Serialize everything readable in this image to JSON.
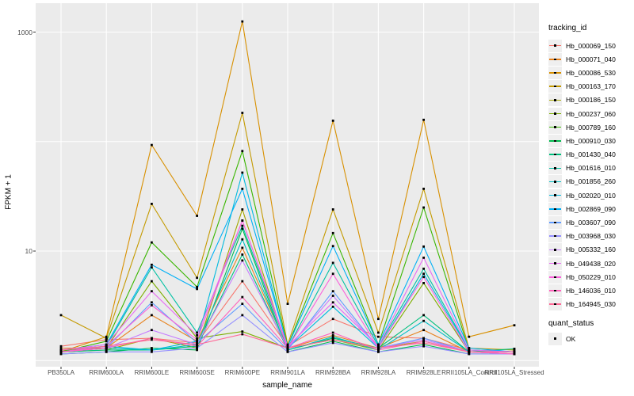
{
  "figure": {
    "x_axis_title": "sample_name",
    "y_axis_title": "FPKM + 1",
    "legend_title": "tracking_id",
    "quant_legend_title": "quant_status",
    "quant_legend_items": [
      {
        "label": "OK"
      }
    ]
  },
  "colors": {
    "panel_bg": "#ebebeb",
    "gridline": "#ffffff",
    "point": "#000000",
    "tick": "#333333",
    "axis_text": "#4d4d4d",
    "legend_key_bg": "#efefef"
  },
  "chart_data": {
    "type": "line",
    "title": "",
    "xlabel": "sample_name",
    "ylabel": "FPKM + 1",
    "yscale": "log10",
    "ylim": [
      0.88,
      1700
    ],
    "y_tick_breaks": [
      1000,
      10
    ],
    "y_gridline_values": [
      1,
      10,
      100,
      1000
    ],
    "grid": true,
    "legend_position": "right",
    "point_shape": "filled-black-square",
    "categories": [
      "PB350LA",
      "RRIM600LA",
      "RRIM600LE",
      "RRIM600SE",
      "RRIM600PE",
      "RRIM901LA",
      "RRIM928BA",
      "RRIM928LA",
      "RRIM928LE",
      "RRII105LA_Control",
      "RRII105LA_Stressed"
    ],
    "series": [
      {
        "name": "Hb_000069_150",
        "color": "#F8766D",
        "values": [
          1.35,
          1.55,
          1.6,
          1.45,
          5.3,
          1.35,
          2.4,
          1.65,
          1.6,
          1.25,
          1.2
        ]
      },
      {
        "name": "Hb_000071_040",
        "color": "#E8821D",
        "values": [
          1.3,
          1.3,
          2.6,
          1.5,
          10.7,
          1.3,
          1.7,
          1.3,
          1.9,
          1.2,
          1.2
        ]
      },
      {
        "name": "Hb_000086_530",
        "color": "#D89000",
        "values": [
          1.2,
          1.65,
          93,
          21,
          1250,
          3.3,
          155,
          2.4,
          158,
          1.65,
          2.1
        ]
      },
      {
        "name": "Hb_000163_170",
        "color": "#C49A00",
        "values": [
          2.6,
          1.6,
          27,
          5.7,
          183,
          1.4,
          24,
          1.8,
          37,
          1.3,
          1.25
        ]
      },
      {
        "name": "Hb_000186_150",
        "color": "#A3A500",
        "values": [
          1.2,
          1.25,
          1.6,
          1.3,
          24,
          1.25,
          1.6,
          1.3,
          1.5,
          1.2,
          1.15
        ]
      },
      {
        "name": "Hb_000237_060",
        "color": "#7CAE00",
        "values": [
          1.25,
          1.3,
          5.3,
          1.6,
          1.84,
          1.3,
          1.55,
          1.25,
          5.1,
          1.2,
          1.2
        ]
      },
      {
        "name": "Hb_000789_160",
        "color": "#39B600",
        "values": [
          1.2,
          1.5,
          12,
          4.7,
          82,
          1.35,
          14.6,
          1.4,
          25,
          1.25,
          1.2
        ]
      },
      {
        "name": "Hb_000910_030",
        "color": "#00BB4E",
        "values": [
          1.15,
          1.2,
          1.3,
          1.25,
          16,
          1.2,
          1.5,
          1.2,
          1.4,
          1.15,
          1.15
        ]
      },
      {
        "name": "Hb_001430_040",
        "color": "#00BF7D",
        "values": [
          1.2,
          1.25,
          1.25,
          1.35,
          9.3,
          1.25,
          1.6,
          1.3,
          2.6,
          1.2,
          1.28
        ]
      },
      {
        "name": "Hb_001616_010",
        "color": "#00C1A3",
        "values": [
          1.25,
          1.35,
          7.1,
          1.8,
          17,
          1.3,
          7.8,
          1.35,
          6.9,
          1.25,
          1.2
        ]
      },
      {
        "name": "Hb_001856_260",
        "color": "#00BFC4",
        "values": [
          1.2,
          1.3,
          1.25,
          1.4,
          12.8,
          1.25,
          1.65,
          1.25,
          2.3,
          1.2,
          1.15
        ]
      },
      {
        "name": "Hb_002020_010",
        "color": "#00BADE",
        "values": [
          1.2,
          1.35,
          1.25,
          1.5,
          52,
          1.3,
          3.1,
          1.3,
          6.2,
          1.25,
          1.2
        ]
      },
      {
        "name": "Hb_002869_090",
        "color": "#00B0F6",
        "values": [
          1.25,
          1.4,
          7.5,
          4.5,
          37,
          1.35,
          11.1,
          1.4,
          11,
          1.3,
          1.2
        ]
      },
      {
        "name": "Hb_003607_090",
        "color": "#619CFF",
        "values": [
          1.2,
          1.3,
          3.4,
          1.45,
          3.3,
          1.25,
          4.3,
          1.3,
          1.6,
          1.2,
          1.15
        ]
      },
      {
        "name": "Hb_003968_030",
        "color": "#9590FF",
        "values": [
          1.15,
          1.2,
          1.2,
          1.3,
          2.6,
          1.2,
          1.45,
          1.2,
          1.35,
          1.15,
          1.15
        ]
      },
      {
        "name": "Hb_005332_160",
        "color": "#C77CFF",
        "values": [
          1.2,
          1.3,
          1.9,
          1.4,
          8.2,
          1.3,
          3.9,
          1.3,
          1.55,
          1.2,
          1.2
        ]
      },
      {
        "name": "Hb_049438_020",
        "color": "#E76BF3",
        "values": [
          1.25,
          1.4,
          4.3,
          1.7,
          19,
          1.35,
          3.4,
          1.35,
          8.7,
          1.25,
          1.2
        ]
      },
      {
        "name": "Hb_050229_010",
        "color": "#FA62DB",
        "values": [
          1.2,
          1.35,
          3.2,
          1.55,
          19,
          1.3,
          6.2,
          1.3,
          5.8,
          1.2,
          1.15
        ]
      },
      {
        "name": "Hb_146036_010",
        "color": "#FF62BC",
        "values": [
          1.2,
          1.3,
          1.6,
          1.35,
          3.8,
          1.3,
          1.8,
          1.25,
          1.5,
          1.2,
          1.15
        ]
      },
      {
        "name": "Hb_164945_030",
        "color": "#FF6A98",
        "values": [
          1.25,
          1.35,
          1.55,
          1.4,
          1.74,
          1.3,
          1.55,
          1.3,
          1.45,
          1.2,
          1.2
        ]
      }
    ],
    "quant_status": {
      "title": "quant_status",
      "values": [
        "OK"
      ]
    }
  }
}
